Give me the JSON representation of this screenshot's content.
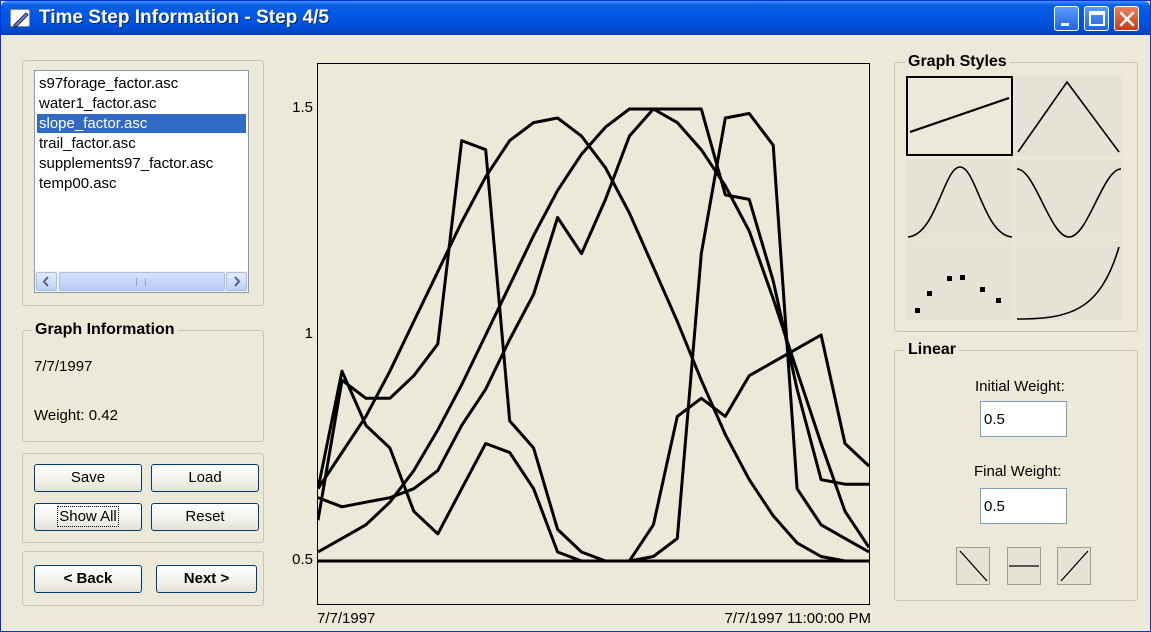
{
  "window": {
    "title": "Time Step Information - Step 4/5"
  },
  "file_list": {
    "items": [
      "s97forage_factor.asc",
      "water1_factor.asc",
      "slope_factor.asc",
      "trail_factor.asc",
      "supplements97_factor.asc",
      "temp00.asc"
    ],
    "selected_index": 2
  },
  "graph_info": {
    "title": "Graph Information",
    "date": "7/7/1997",
    "weight": "Weight: 0.42"
  },
  "buttons": {
    "save": "Save",
    "load": "Load",
    "show_all": "Show All",
    "reset": "Reset",
    "back": "< Back",
    "next": "Next >"
  },
  "graph_styles": {
    "title": "Graph Styles",
    "styles": [
      "linear-icon",
      "triangle-icon",
      "bell-curve-icon",
      "wave-icon",
      "scatter-dots-icon",
      "exponential-icon"
    ],
    "selected": "linear-icon"
  },
  "linear": {
    "title": "Linear",
    "initial_label": "Initial Weight:",
    "initial_value": "0.5",
    "final_label": "Final Weight:",
    "final_value": "0.5",
    "presets": [
      "decreasing-line-icon",
      "flat-line-icon",
      "increasing-line-icon"
    ]
  },
  "chart_data": {
    "type": "line",
    "y_tick_labels": [
      "1.5",
      "1",
      "0.5"
    ],
    "x_tick_labels": [
      "7/7/1997",
      "7/7/1997 11:00:00 PM"
    ],
    "ylim": [
      0.5,
      1.5
    ],
    "x": [
      0,
      1,
      2,
      3,
      4,
      5,
      6,
      7,
      8,
      9,
      10,
      11,
      12,
      13,
      14,
      15,
      16,
      17,
      18,
      19,
      20,
      21,
      22,
      23
    ],
    "series": [
      {
        "values": [
          0.5,
          0.5,
          0.5,
          0.5,
          0.5,
          0.5,
          0.5,
          0.5,
          0.5,
          0.5,
          0.5,
          0.5,
          0.5,
          0.5,
          0.5,
          0.5,
          0.5,
          0.5,
          0.5,
          0.5,
          0.5,
          0.5,
          0.5,
          0.5
        ]
      },
      {
        "values": [
          0.52,
          0.55,
          0.58,
          0.63,
          0.7,
          0.79,
          0.89,
          1.0,
          1.11,
          1.22,
          1.32,
          1.4,
          1.46,
          1.5,
          1.5,
          1.47,
          1.41,
          1.33,
          1.23,
          1.08,
          0.92,
          0.76,
          0.61,
          0.53
        ]
      },
      {
        "values": [
          0.66,
          0.74,
          0.82,
          0.92,
          1.03,
          1.14,
          1.25,
          1.35,
          1.43,
          1.47,
          1.48,
          1.44,
          1.37,
          1.27,
          1.15,
          1.03,
          0.9,
          0.78,
          0.68,
          0.6,
          0.54,
          0.51,
          0.5,
          0.5
        ]
      },
      {
        "values": [
          0.64,
          0.62,
          0.63,
          0.64,
          0.66,
          0.7,
          0.8,
          0.88,
          0.99,
          1.09,
          1.26,
          1.18,
          1.3,
          1.44,
          1.5,
          1.5,
          1.5,
          1.31,
          1.3,
          1.12,
          0.88,
          0.68,
          0.67,
          0.67
        ]
      },
      {
        "values": [
          0.66,
          0.92,
          0.8,
          0.75,
          0.61,
          0.56,
          0.66,
          0.76,
          0.74,
          0.66,
          0.52,
          0.5,
          0.5,
          0.5,
          0.58,
          0.82,
          0.86,
          0.82,
          0.91,
          0.94,
          0.97,
          1.0,
          0.76,
          0.71
        ]
      },
      {
        "values": [
          0.59,
          0.9,
          0.86,
          0.86,
          0.91,
          0.98,
          1.43,
          1.41,
          0.81,
          0.75,
          0.57,
          0.52,
          0.5,
          0.5,
          0.51,
          0.55,
          1.18,
          1.48,
          1.49,
          1.42,
          0.66,
          0.58,
          0.55,
          0.52
        ]
      }
    ],
    "grid": false,
    "legend": "none"
  }
}
